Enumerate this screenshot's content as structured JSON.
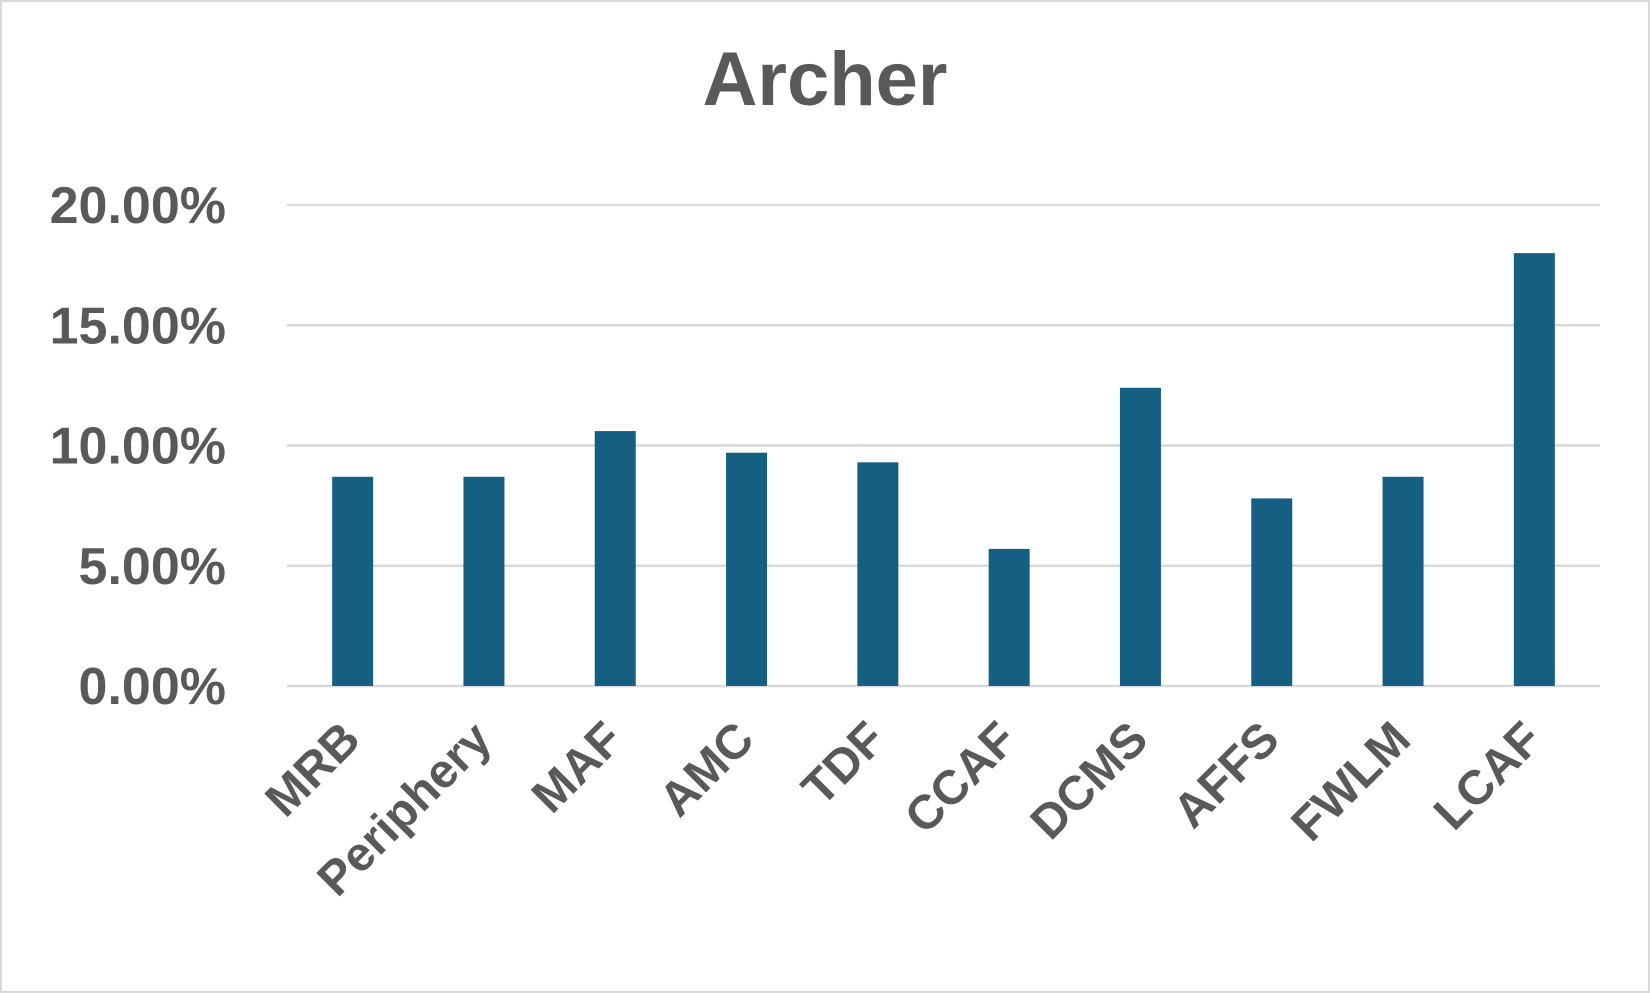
{
  "chart_data": {
    "type": "bar",
    "title": "Archer",
    "xlabel": "",
    "ylabel": "",
    "categories": [
      "MRB",
      "Periphery",
      "MAF",
      "AMC",
      "TDF",
      "CCAF",
      "DCMS",
      "AFFS",
      "FWLM",
      "LCAF"
    ],
    "values": [
      8.7,
      8.7,
      10.6,
      9.7,
      9.3,
      5.7,
      12.4,
      7.8,
      8.7,
      18.0
    ],
    "ylim": [
      0,
      20
    ],
    "yticks": [
      0,
      5,
      10,
      15,
      20
    ],
    "ytick_labels": [
      "0.00%",
      "5.00%",
      "10.00%",
      "15.00%",
      "20.00%"
    ],
    "grid": true,
    "legend": "none",
    "bar_color": "#156082",
    "grid_color": "#d9d9d9",
    "text_color": "#595959"
  }
}
